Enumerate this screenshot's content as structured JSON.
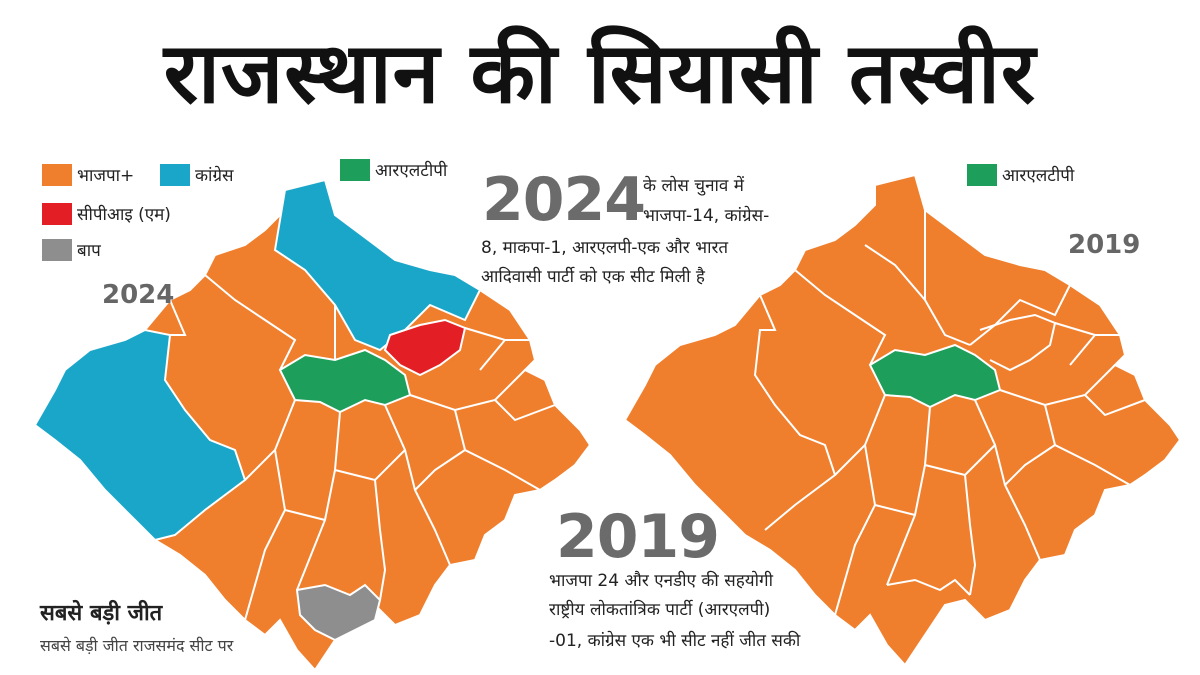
{
  "title": "राजस्थान की सियासी तस्वीर",
  "colors": {
    "bjp": "#F07F2D",
    "congress": "#1AA6C8",
    "rlp": "#1E9E5B",
    "cpim": "#E31E24",
    "bap": "#8E8E8E",
    "border": "#ffffff"
  },
  "legend_2024": [
    {
      "label": "भाजपा+",
      "color": "#F07F2D"
    },
    {
      "label": "कांग्रेस",
      "color": "#1AA6C8"
    },
    {
      "label": "सीपीआइ (एम)",
      "color": "#E31E24"
    },
    {
      "label": "बाप",
      "color": "#8E8E8E"
    },
    {
      "label": "आरएलटीपी",
      "color": "#1E9E5B"
    }
  ],
  "legend_2019": [
    {
      "label": "आरएलटीपी",
      "color": "#1E9E5B"
    }
  ],
  "map_2024": {
    "year_label": "2024"
  },
  "map_2019": {
    "year_label": "2019"
  },
  "info_2024": {
    "year": "2024",
    "line1": "के लोस चुनाव में",
    "line2": "भाजपा-14, कांग्रेस-",
    "line3": "8, माकपा-1, आरएलपी-एक और भारत",
    "line4": "आदिवासी पार्टी को एक सीट मिली है"
  },
  "info_2019": {
    "year": "2019",
    "line1": "भाजपा 24 और एनडीए की सहयोगी",
    "line2": "राष्ट्रीय लोकतांत्रिक पार्टी (आरएलपी)",
    "line3": "-01, कांग्रेस एक भी सीट नहीं जीत सकी"
  },
  "biggest_win": {
    "heading": "सबसे बड़ी जीत",
    "text": "सबसे बड़ी जीत राजसमंद सीट पर"
  }
}
